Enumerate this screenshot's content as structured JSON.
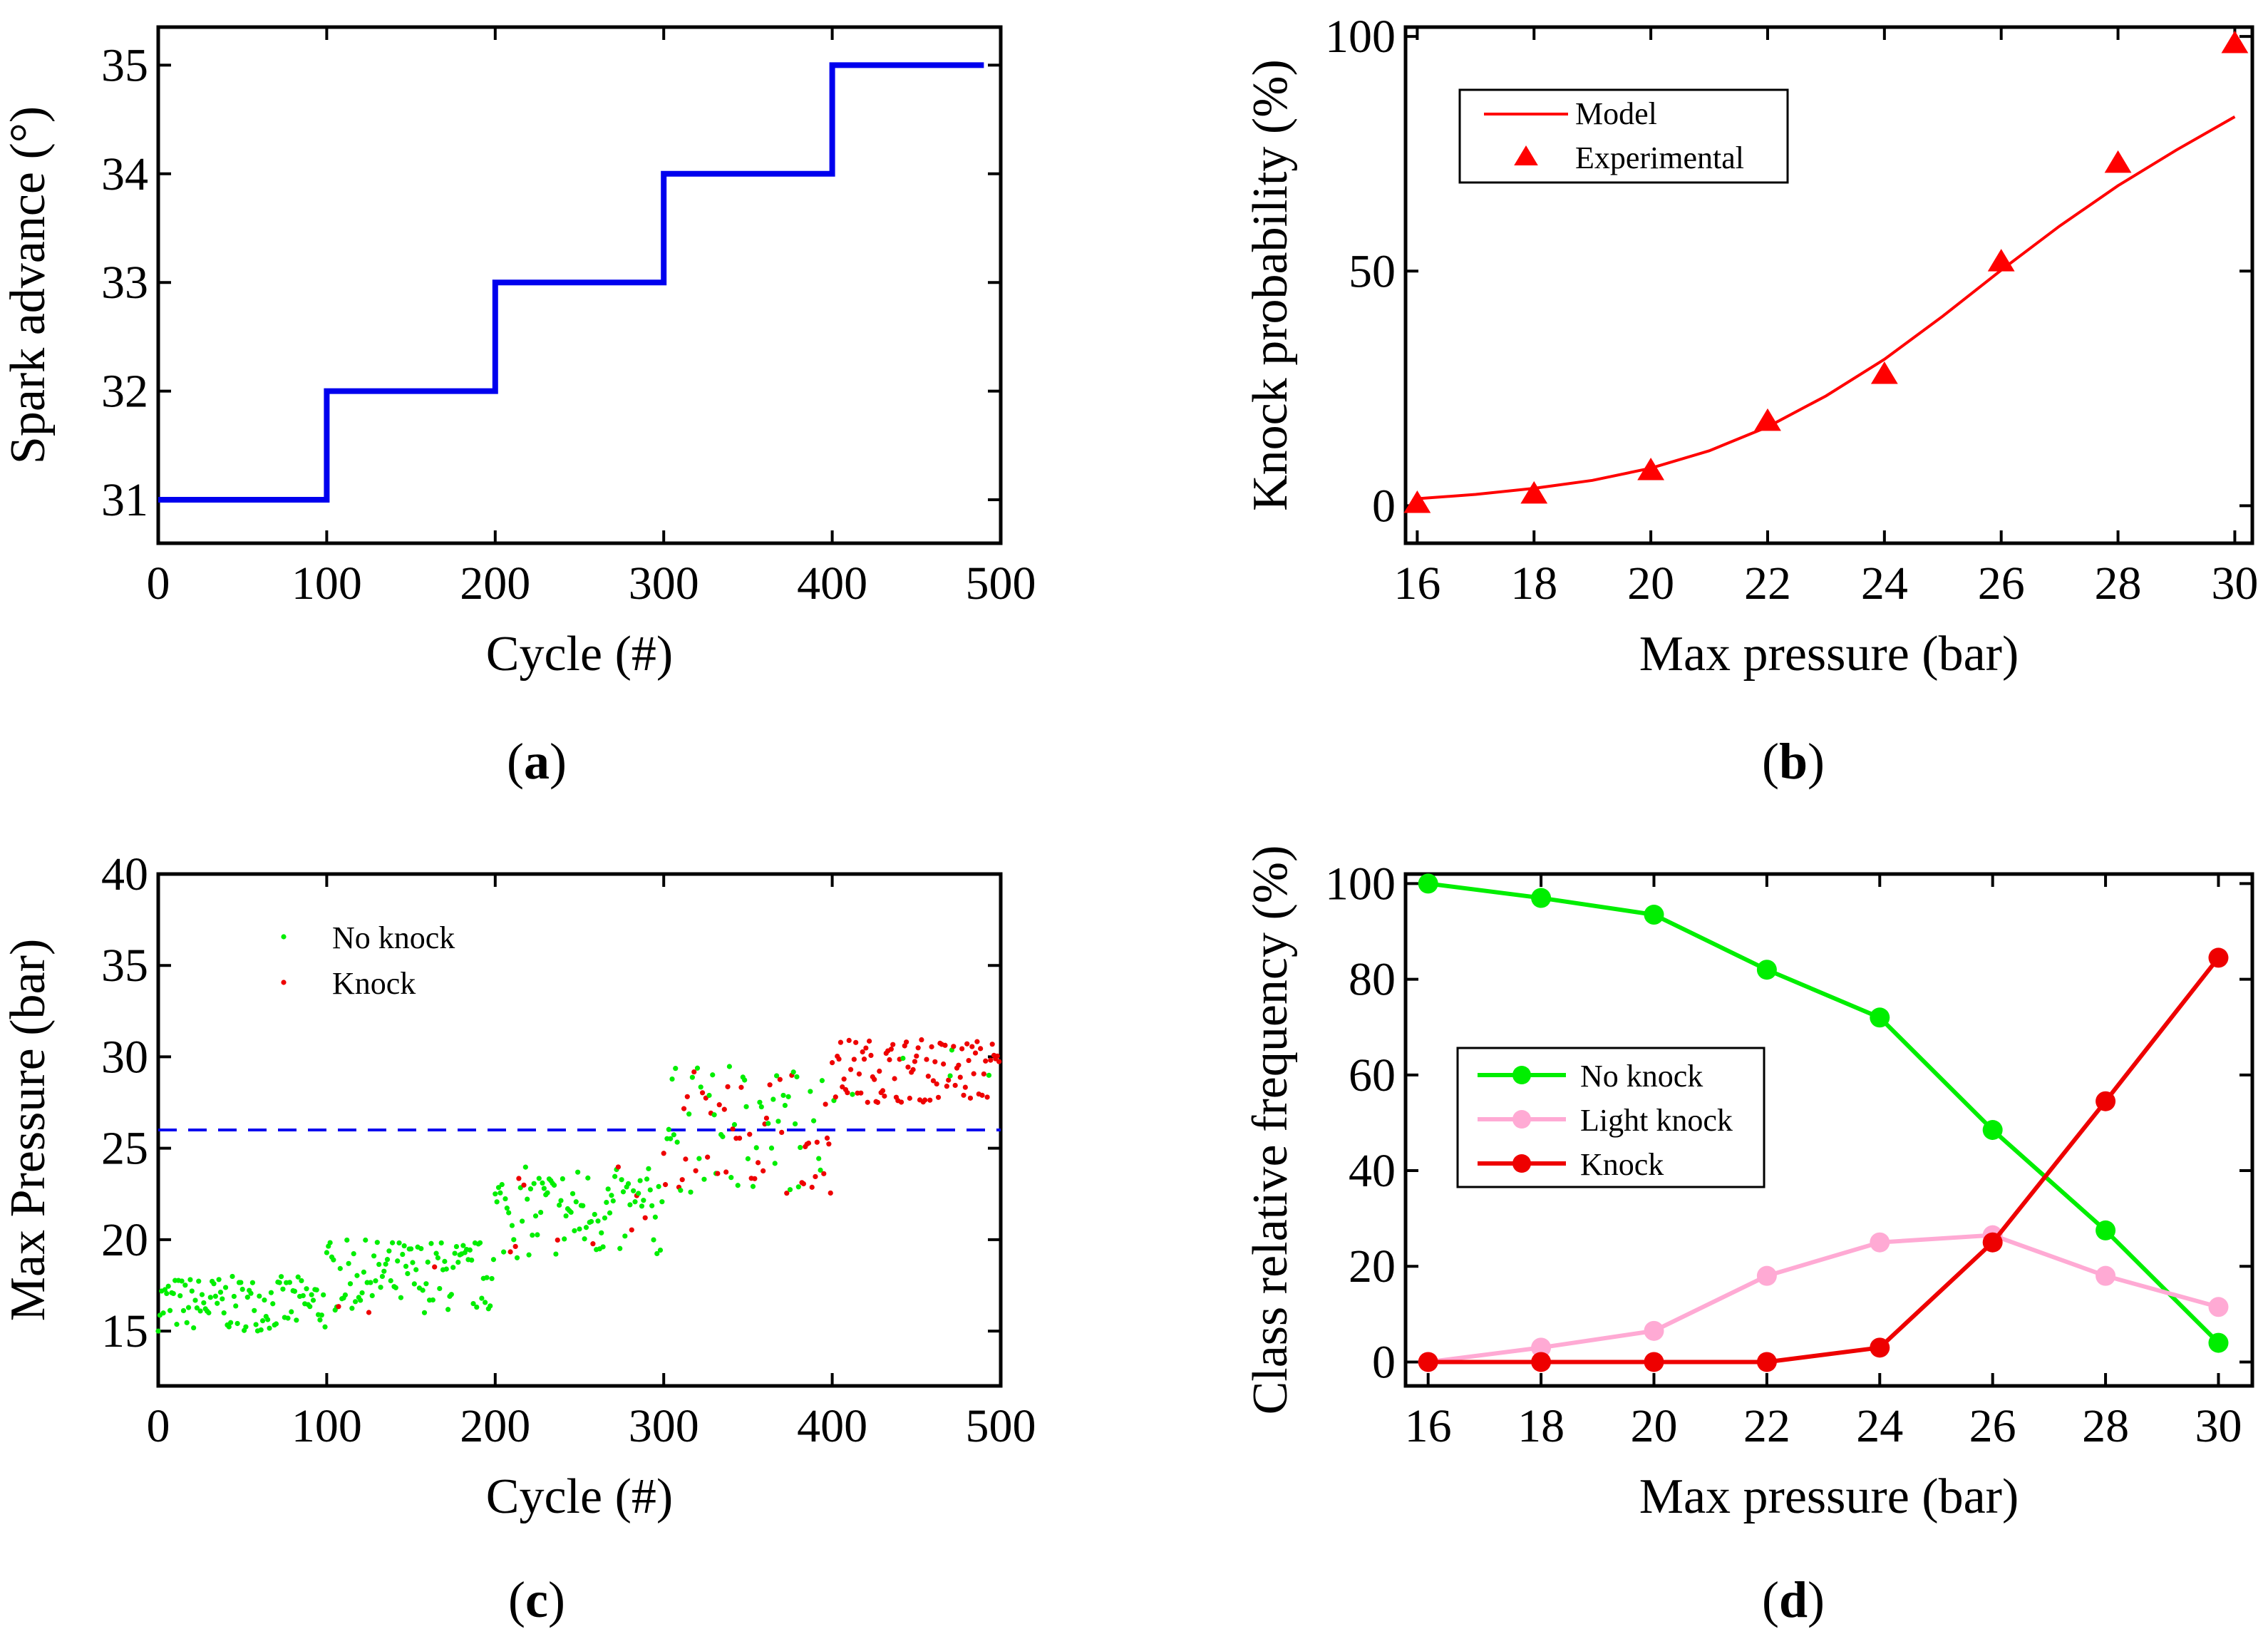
{
  "chart_data": [
    {
      "panel": "a",
      "panel_label": "a",
      "type": "line",
      "step": true,
      "xlabel": "Cycle (#)",
      "ylabel": "Spark advance (°)",
      "xlim": [
        0,
        500
      ],
      "ylim": [
        30.6,
        35.35
      ],
      "xticks": [
        0,
        100,
        200,
        300,
        400,
        500
      ],
      "yticks": [
        31,
        32,
        33,
        34,
        35
      ],
      "color": "#0000ee",
      "series": [
        {
          "name": "Spark advance",
          "x": [
            0,
            100,
            100,
            200,
            200,
            300,
            300,
            400,
            400,
            490
          ],
          "y": [
            31,
            31,
            32,
            32,
            33,
            33,
            34,
            34,
            35,
            35
          ]
        }
      ]
    },
    {
      "panel": "b",
      "panel_label": "b",
      "type": "line",
      "xlabel": "Max pressure (bar)",
      "ylabel": "Knock probability (%)",
      "xlim": [
        15.8,
        30.3
      ],
      "ylim": [
        -8,
        102
      ],
      "xticks": [
        16,
        18,
        20,
        22,
        24,
        26,
        28,
        30
      ],
      "yticks": [
        0,
        50,
        100
      ],
      "legend": {
        "position": "top-left",
        "entries": [
          "Model",
          "Experimental"
        ]
      },
      "color": "#ff0000",
      "model": {
        "name": "Model",
        "x": [
          16,
          17,
          18,
          19,
          20,
          21,
          22,
          23,
          24,
          25,
          26,
          27,
          28,
          29,
          30
        ],
        "y": [
          1.5,
          2.4,
          3.7,
          5.4,
          8.0,
          11.7,
          16.8,
          23.4,
          31.2,
          40.4,
          50.2,
          59.6,
          68.2,
          75.8,
          82.9
        ]
      },
      "experimental": {
        "name": "Experimental",
        "x": [
          16,
          18,
          20,
          22,
          24,
          26,
          28,
          30
        ],
        "y": [
          0.5,
          2.5,
          7.5,
          18,
          28,
          52,
          73,
          98.5
        ]
      }
    },
    {
      "panel": "c",
      "panel_label": "c",
      "type": "scatter",
      "xlabel": "Cycle (#)",
      "ylabel": "Max Pressure (bar)",
      "xlim": [
        0,
        500
      ],
      "ylim": [
        12,
        40
      ],
      "xticks": [
        0,
        100,
        200,
        300,
        400,
        500
      ],
      "yticks": [
        15,
        20,
        25,
        30,
        35,
        40
      ],
      "legend": {
        "position": "top-left",
        "entries": [
          "No knock",
          "Knock"
        ]
      },
      "colors": {
        "no_knock": "#00ee00",
        "knock": "#ee0000",
        "threshold": "#0000ee"
      },
      "threshold": 26,
      "blocks": [
        {
          "x_range": [
            0,
            99
          ],
          "y_range": [
            15.0,
            18.0
          ],
          "knock_fraction": 0.0
        },
        {
          "x_range": [
            100,
            199
          ],
          "y_range": [
            16.0,
            20.0
          ],
          "knock_fraction": 0.02
        },
        {
          "x_range": [
            200,
            299
          ],
          "y_range": [
            19.0,
            24.0
          ],
          "knock_fraction": 0.08
        },
        {
          "x_range": [
            300,
            399
          ],
          "y_range": [
            22.5,
            29.5
          ],
          "knock_fraction": 0.45
        },
        {
          "x_range": [
            400,
            499
          ],
          "y_range": [
            27.5,
            31.0
          ],
          "knock_fraction": 0.9
        }
      ]
    },
    {
      "panel": "d",
      "panel_label": "d",
      "type": "line",
      "xlabel": "Max pressure (bar)",
      "ylabel": "Class relative frequency (%)",
      "xlim": [
        15.6,
        30.6
      ],
      "ylim": [
        -5,
        102
      ],
      "xticks": [
        16,
        18,
        20,
        22,
        24,
        26,
        28,
        30
      ],
      "yticks": [
        0,
        20,
        40,
        60,
        80,
        100
      ],
      "legend": {
        "position": "center-left",
        "entries": [
          "No knock",
          "Light knock",
          "Knock"
        ]
      },
      "categories": [
        16,
        18,
        20,
        22,
        24,
        26,
        28,
        30
      ],
      "series": [
        {
          "name": "No knock",
          "color": "#00ee00",
          "values": [
            100,
            97,
            93.5,
            82,
            72,
            48.5,
            27.5,
            4
          ]
        },
        {
          "name": "Light knock",
          "color": "#ffaad4",
          "values": [
            0,
            3,
            6.5,
            18,
            25,
            26.5,
            18,
            11.5
          ]
        },
        {
          "name": "Knock",
          "color": "#ee0000",
          "values": [
            0,
            0,
            0,
            0,
            3,
            25,
            54.5,
            84.5
          ]
        }
      ]
    }
  ]
}
